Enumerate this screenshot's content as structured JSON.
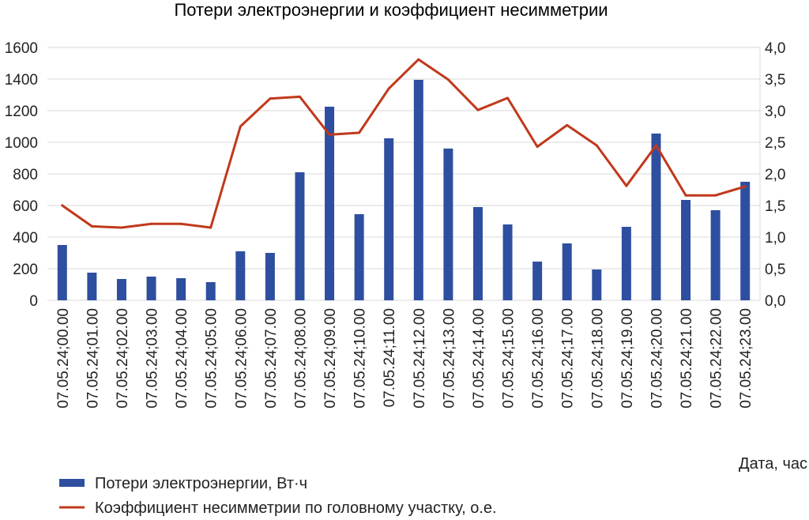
{
  "chart_data": {
    "type": "bar",
    "title": "Потери электроэнергии и коэффициент несимметрии",
    "xlabel": "Дата, час",
    "ylabel": "",
    "y2label": "",
    "categories": [
      "07.05.24;00.00",
      "07.05.24;01.00",
      "07.05.24;02.00",
      "07.05.24;03.00",
      "07.05.24;04.00",
      "07.05.24;05.00",
      "07.05.24;06.00",
      "07.05.24;07.00",
      "07.05.24;08.00",
      "07.05.24;09.00",
      "07.05.24;10.00",
      "07.05.24;11.00",
      "07.05.24;12.00",
      "07.05.24;13.00",
      "07.05.24;14.00",
      "07.05.24;15.00",
      "07.05.24;16.00",
      "07.05.24;17.00",
      "07.05.24;18.00",
      "07.05.24;19.00",
      "07.05.24;20.00",
      "07.05.24;21.00",
      "07.05.24;22.00",
      "07.05.24;23.00"
    ],
    "ylim": [
      0,
      1600
    ],
    "y2lim": [
      0,
      4.0
    ],
    "yticks": [
      "0",
      "200",
      "400",
      "600",
      "800",
      "1000",
      "1200",
      "1400",
      "1600"
    ],
    "y2ticks": [
      "0,0",
      "0,5",
      "1,0",
      "1,5",
      "2,0",
      "2,5",
      "3,0",
      "3,5",
      "4,0"
    ],
    "grid": true,
    "legend_position": "bottom-left",
    "series": [
      {
        "name": "Потери электроэнергии, Вт·ч",
        "type": "bar",
        "axis": "left",
        "color": "#2e4fa0",
        "values": [
          350,
          175,
          135,
          150,
          140,
          115,
          310,
          300,
          810,
          1225,
          545,
          1025,
          1395,
          960,
          590,
          480,
          245,
          360,
          195,
          465,
          1055,
          635,
          570,
          750
        ]
      },
      {
        "name": "Коэффициент несимметрии по головному участку, о.е.",
        "type": "line",
        "axis": "right",
        "color": "#c0391b",
        "values": [
          1.5,
          1.17,
          1.15,
          1.21,
          1.21,
          1.15,
          2.75,
          3.19,
          3.22,
          2.62,
          2.65,
          3.35,
          3.81,
          3.49,
          3.01,
          3.2,
          2.43,
          2.77,
          2.45,
          1.81,
          2.45,
          1.66,
          1.66,
          1.8
        ]
      }
    ]
  }
}
